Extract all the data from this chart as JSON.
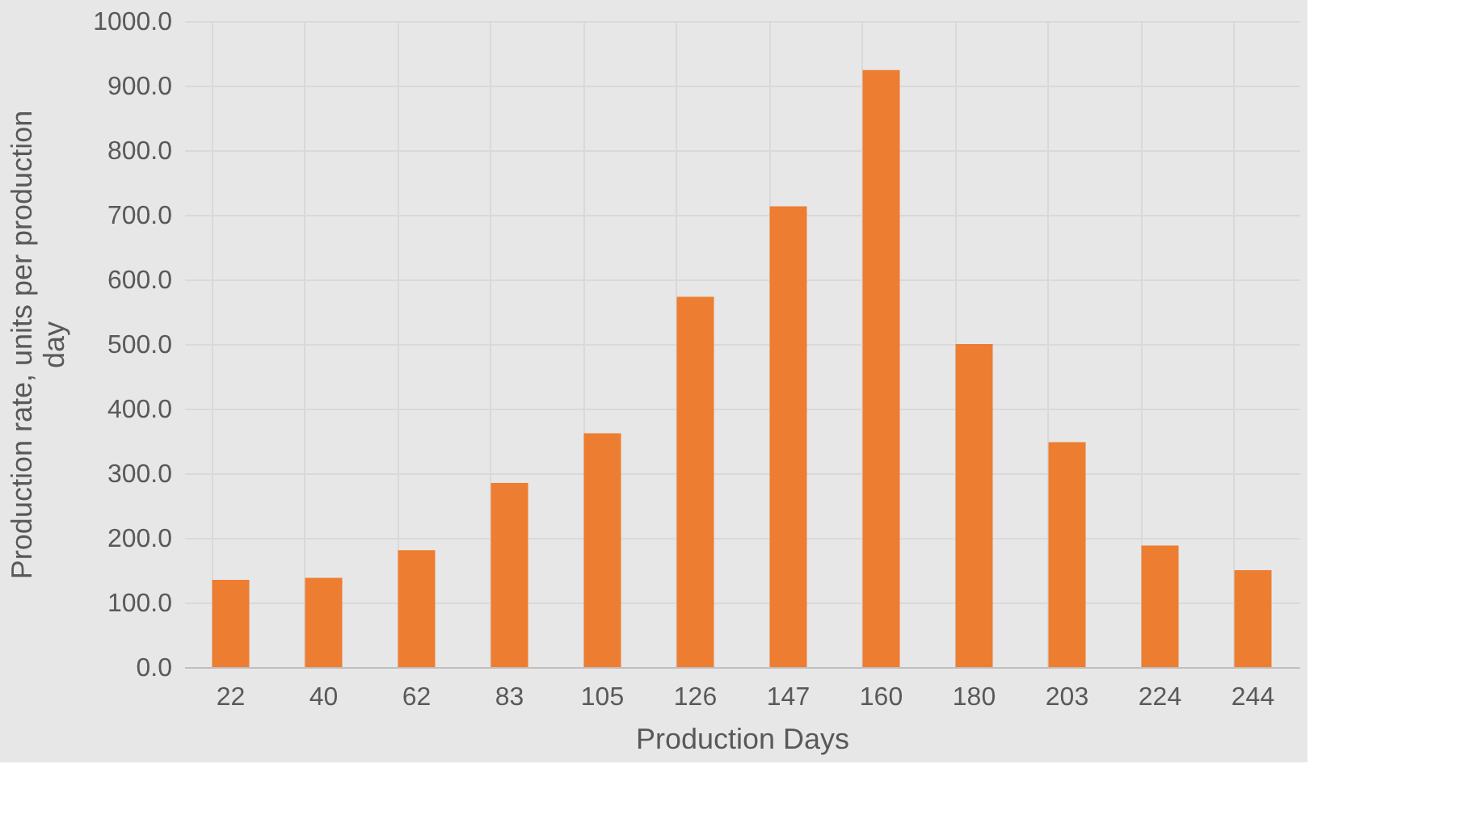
{
  "chart_data": {
    "type": "bar",
    "xlabel": "Production Days",
    "ylabel": "Production rate, units per production day",
    "categories": [
      "22",
      "40",
      "62",
      "83",
      "105",
      "126",
      "147",
      "160",
      "180",
      "203",
      "224",
      "244"
    ],
    "series": [
      {
        "color": "#ed7d31",
        "values": [
          135,
          138,
          181,
          285,
          362,
          573,
          713,
          924,
          500,
          348,
          188,
          150
        ]
      }
    ],
    "ylim": [
      0,
      1000
    ],
    "yticks": [
      {
        "value": 0,
        "label": "0.0"
      },
      {
        "value": 100,
        "label": "100.0"
      },
      {
        "value": 200,
        "label": "200.0"
      },
      {
        "value": 300,
        "label": "300.0"
      },
      {
        "value": 400,
        "label": "400.0"
      },
      {
        "value": 500,
        "label": "500.0"
      },
      {
        "value": 600,
        "label": "600.0"
      },
      {
        "value": 700,
        "label": "700.0"
      },
      {
        "value": 800,
        "label": "800.0"
      },
      {
        "value": 900,
        "label": "900.0"
      },
      {
        "value": 1000,
        "label": "1000.0"
      }
    ],
    "grid": true
  }
}
